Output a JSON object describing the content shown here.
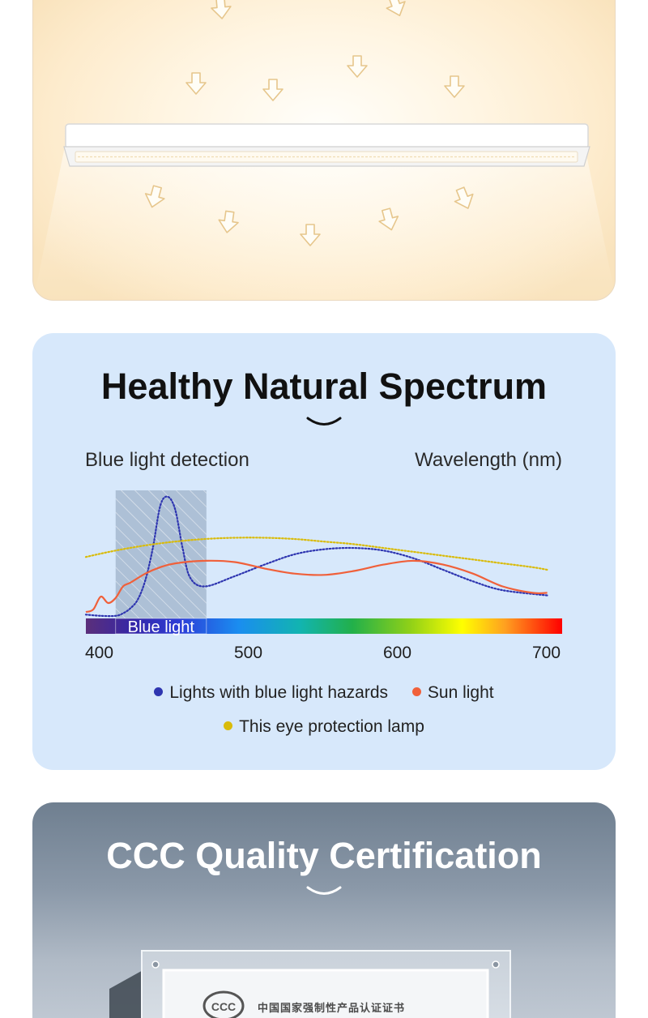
{
  "lamp_section": {
    "icons": [
      "down-arrow-icon",
      "light-bar-icon"
    ]
  },
  "spectrum_section": {
    "title": "Healthy Natural Spectrum",
    "left_label": "Blue light detection",
    "right_label": "Wavelength (nm)",
    "band_label": "Blue light",
    "ticks": [
      "400",
      "500",
      "600",
      "700"
    ],
    "legend": {
      "blue_hazard": "Lights with blue light hazards",
      "sun": "Sun light",
      "lamp": "This eye protection lamp"
    },
    "colors": {
      "blue_hazard": "#2e35b0",
      "sun": "#f0603a",
      "lamp": "#d9bb0a",
      "panel_bg": "#d7e8fb"
    }
  },
  "cert_section": {
    "title": "CCC Quality Certification",
    "certificate_heading": "中国国家强制性产品认证证书",
    "certificate_logo": "CCC"
  },
  "chart_data": {
    "type": "line",
    "title": "",
    "xlabel": "Wavelength (nm)",
    "ylabel": "Blue light detection",
    "xlim": [
      400,
      720
    ],
    "x_ticks": [
      400,
      500,
      600,
      700
    ],
    "shaded_band": {
      "label": "Blue light",
      "from": 420,
      "to": 481
    },
    "series": [
      {
        "name": "Lights with blue light hazards",
        "style": "dotted",
        "x": [
          400,
          410,
          420,
          425,
          430,
          435,
          440,
          445,
          450,
          455,
          460,
          465,
          470,
          480,
          500,
          520,
          540,
          560,
          580,
          600,
          620,
          640,
          660,
          680,
          710
        ],
        "y": [
          3,
          2,
          2,
          4,
          8,
          15,
          30,
          55,
          88,
          95,
          85,
          55,
          32,
          25,
          33,
          42,
          50,
          54,
          55,
          53,
          47,
          38,
          29,
          22,
          18
        ]
      },
      {
        "name": "Sun light",
        "style": "solid",
        "x": [
          400,
          405,
          410,
          415,
          420,
          425,
          430,
          440,
          450,
          460,
          480,
          500,
          520,
          540,
          560,
          580,
          600,
          620,
          640,
          660,
          680,
          700,
          710
        ],
        "y": [
          5,
          7,
          17,
          12,
          16,
          25,
          28,
          35,
          40,
          43,
          45,
          44,
          39,
          35,
          34,
          37,
          42,
          45,
          42,
          35,
          25,
          20,
          20
        ]
      },
      {
        "name": "This eye protection lamp",
        "style": "dotted",
        "x": [
          400,
          420,
          440,
          460,
          480,
          500,
          520,
          540,
          560,
          580,
          600,
          620,
          640,
          660,
          680,
          700,
          710
        ],
        "y": [
          48,
          53,
          57,
          60,
          62,
          63,
          63,
          62,
          60,
          58,
          55,
          52,
          49,
          46,
          43,
          40,
          38
        ]
      }
    ]
  }
}
